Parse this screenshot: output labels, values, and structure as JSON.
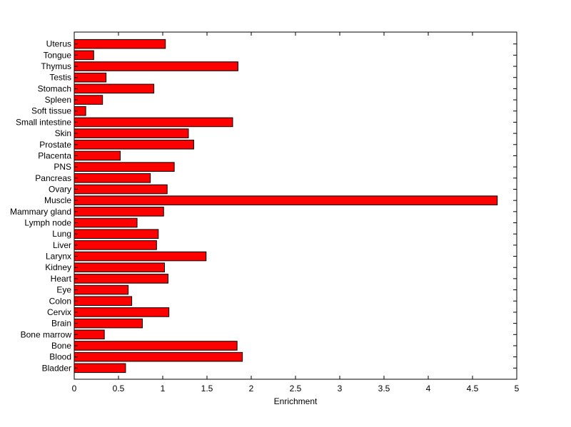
{
  "chart_data": {
    "type": "bar",
    "orientation": "horizontal",
    "title": "",
    "xlabel": "Enrichment",
    "ylabel": "",
    "xlim": [
      0,
      5
    ],
    "xticks": [
      0,
      0.5,
      1,
      1.5,
      2,
      2.5,
      3,
      3.5,
      4,
      4.5,
      5
    ],
    "xtick_labels": [
      "0",
      "0.5",
      "1",
      "1.5",
      "2",
      "2.5",
      "3",
      "3.5",
      "4",
      "4.5",
      "5"
    ],
    "grid": false,
    "legend": "none",
    "bar_color": "#ff0000",
    "bar_edge_color": "#000000",
    "categories": [
      "Bladder",
      "Blood",
      "Bone",
      "Bone marrow",
      "Brain",
      "Cervix",
      "Colon",
      "Eye",
      "Heart",
      "Kidney",
      "Larynx",
      "Liver",
      "Lung",
      "Lymph node",
      "Mammary gland",
      "Muscle",
      "Ovary",
      "Pancreas",
      "PNS",
      "Placenta",
      "Prostate",
      "Skin",
      "Small intestine",
      "Soft tissue",
      "Spleen",
      "Stomach",
      "Testis",
      "Thymus",
      "Tongue",
      "Uterus"
    ],
    "values": [
      0.58,
      1.9,
      1.84,
      0.34,
      0.77,
      1.07,
      0.65,
      0.61,
      1.06,
      1.02,
      1.49,
      0.93,
      0.95,
      0.71,
      1.01,
      4.78,
      1.05,
      0.86,
      1.13,
      0.52,
      1.35,
      1.29,
      1.79,
      0.13,
      0.32,
      0.9,
      0.36,
      1.85,
      0.22,
      1.03
    ]
  }
}
